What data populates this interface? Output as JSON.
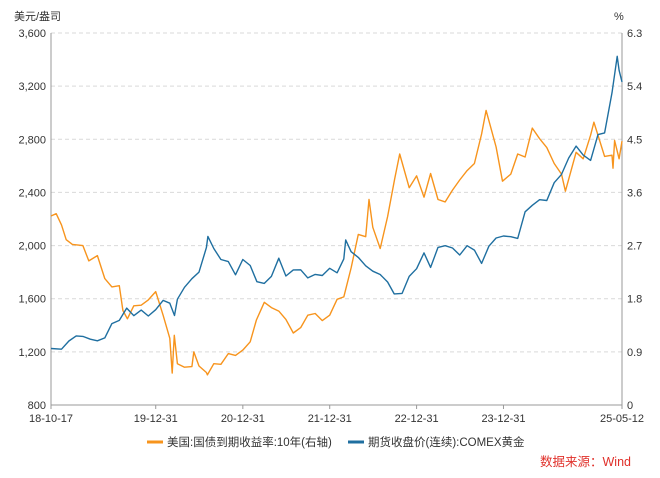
{
  "chart_data": {
    "type": "line",
    "left_axis_unit": "美元/盎司",
    "right_axis_unit": "%",
    "left_ticks": [
      "3,600",
      "3,200",
      "2,800",
      "2,400",
      "2,000",
      "1,600",
      "1,200",
      "800"
    ],
    "right_ticks": [
      "6.3",
      "5.4",
      "4.5",
      "3.6",
      "2.7",
      "1.8",
      "0.9",
      "0"
    ],
    "x_ticks": [
      "18-10-17",
      "19-12-31",
      "20-12-31",
      "21-12-31",
      "22-12-31",
      "23-12-31",
      "25-05-12"
    ],
    "ylim_left": [
      800,
      3600
    ],
    "ylim_right": [
      0,
      6.3
    ],
    "grid": "horizontal dashed",
    "legend_position": "bottom",
    "source": "数据来源：Wind",
    "colors": {
      "yield": "#f7941d",
      "gold": "#1f6fa0",
      "source": "#e0302a",
      "grid": "#d9d9d9"
    },
    "series": [
      {
        "name": "美国:国债到期收益率:10年(右轴)",
        "axis": "right",
        "points": [
          [
            "2018-10-17",
            3.2
          ],
          [
            "2018-11-08",
            3.24
          ],
          [
            "2018-11-30",
            3.05
          ],
          [
            "2018-12-20",
            2.8
          ],
          [
            "2019-01-15",
            2.72
          ],
          [
            "2019-02-28",
            2.7
          ],
          [
            "2019-03-25",
            2.44
          ],
          [
            "2019-04-30",
            2.53
          ],
          [
            "2019-05-31",
            2.14
          ],
          [
            "2019-06-30",
            2.0
          ],
          [
            "2019-07-31",
            2.02
          ],
          [
            "2019-08-15",
            1.6
          ],
          [
            "2019-09-03",
            1.46
          ],
          [
            "2019-09-30",
            1.68
          ],
          [
            "2019-10-31",
            1.69
          ],
          [
            "2019-11-30",
            1.78
          ],
          [
            "2019-12-31",
            1.92
          ],
          [
            "2020-01-31",
            1.52
          ],
          [
            "2020-02-28",
            1.13
          ],
          [
            "2020-03-09",
            0.54
          ],
          [
            "2020-03-18",
            1.18
          ],
          [
            "2020-03-31",
            0.7
          ],
          [
            "2020-04-30",
            0.64
          ],
          [
            "2020-05-31",
            0.65
          ],
          [
            "2020-06-08",
            0.9
          ],
          [
            "2020-06-30",
            0.66
          ],
          [
            "2020-07-31",
            0.55
          ],
          [
            "2020-08-04",
            0.51
          ],
          [
            "2020-08-31",
            0.7
          ],
          [
            "2020-09-30",
            0.69
          ],
          [
            "2020-10-31",
            0.87
          ],
          [
            "2020-11-30",
            0.84
          ],
          [
            "2020-12-31",
            0.93
          ],
          [
            "2021-01-31",
            1.07
          ],
          [
            "2021-02-26",
            1.44
          ],
          [
            "2021-03-31",
            1.74
          ],
          [
            "2021-04-30",
            1.65
          ],
          [
            "2021-05-31",
            1.59
          ],
          [
            "2021-06-30",
            1.45
          ],
          [
            "2021-07-31",
            1.22
          ],
          [
            "2021-08-31",
            1.31
          ],
          [
            "2021-09-30",
            1.52
          ],
          [
            "2021-10-31",
            1.55
          ],
          [
            "2021-11-30",
            1.43
          ],
          [
            "2021-12-31",
            1.52
          ],
          [
            "2022-01-31",
            1.79
          ],
          [
            "2022-02-28",
            1.83
          ],
          [
            "2022-03-31",
            2.32
          ],
          [
            "2022-04-30",
            2.89
          ],
          [
            "2022-05-31",
            2.85
          ],
          [
            "2022-06-14",
            3.48
          ],
          [
            "2022-06-30",
            3.01
          ],
          [
            "2022-07-31",
            2.65
          ],
          [
            "2022-08-31",
            3.19
          ],
          [
            "2022-09-30",
            3.83
          ],
          [
            "2022-10-21",
            4.25
          ],
          [
            "2022-11-30",
            3.68
          ],
          [
            "2022-12-31",
            3.88
          ],
          [
            "2023-01-31",
            3.52
          ],
          [
            "2023-02-28",
            3.92
          ],
          [
            "2023-03-31",
            3.48
          ],
          [
            "2023-04-30",
            3.44
          ],
          [
            "2023-05-31",
            3.64
          ],
          [
            "2023-06-30",
            3.81
          ],
          [
            "2023-07-31",
            3.97
          ],
          [
            "2023-08-31",
            4.09
          ],
          [
            "2023-09-30",
            4.59
          ],
          [
            "2023-10-19",
            4.99
          ],
          [
            "2023-11-30",
            4.37
          ],
          [
            "2023-12-27",
            3.79
          ],
          [
            "2024-01-31",
            3.91
          ],
          [
            "2024-02-29",
            4.25
          ],
          [
            "2024-03-31",
            4.2
          ],
          [
            "2024-04-30",
            4.69
          ],
          [
            "2024-05-31",
            4.51
          ],
          [
            "2024-06-30",
            4.36
          ],
          [
            "2024-07-31",
            4.09
          ],
          [
            "2024-08-31",
            3.91
          ],
          [
            "2024-09-16",
            3.62
          ],
          [
            "2024-10-31",
            4.28
          ],
          [
            "2024-11-30",
            4.17
          ],
          [
            "2024-12-31",
            4.57
          ],
          [
            "2025-01-14",
            4.79
          ],
          [
            "2025-02-28",
            4.21
          ],
          [
            "2025-03-31",
            4.23
          ],
          [
            "2025-04-04",
            4.01
          ],
          [
            "2025-04-11",
            4.48
          ],
          [
            "2025-04-30",
            4.17
          ],
          [
            "2025-05-12",
            4.47
          ]
        ]
      },
      {
        "name": "期货收盘价(连续):COMEX黄金",
        "axis": "left",
        "points": [
          [
            "2018-10-17",
            1225
          ],
          [
            "2018-11-30",
            1220
          ],
          [
            "2018-12-31",
            1282
          ],
          [
            "2019-01-31",
            1320
          ],
          [
            "2019-02-28",
            1316
          ],
          [
            "2019-03-31",
            1295
          ],
          [
            "2019-04-30",
            1283
          ],
          [
            "2019-05-31",
            1305
          ],
          [
            "2019-06-30",
            1413
          ],
          [
            "2019-07-31",
            1437
          ],
          [
            "2019-08-31",
            1529
          ],
          [
            "2019-09-30",
            1472
          ],
          [
            "2019-10-31",
            1514
          ],
          [
            "2019-11-30",
            1470
          ],
          [
            "2019-12-31",
            1517
          ],
          [
            "2020-01-31",
            1587
          ],
          [
            "2020-02-28",
            1566
          ],
          [
            "2020-03-19",
            1474
          ],
          [
            "2020-03-31",
            1596
          ],
          [
            "2020-04-30",
            1686
          ],
          [
            "2020-05-31",
            1751
          ],
          [
            "2020-06-30",
            1800
          ],
          [
            "2020-07-31",
            1985
          ],
          [
            "2020-08-06",
            2069
          ],
          [
            "2020-08-31",
            1978
          ],
          [
            "2020-09-30",
            1895
          ],
          [
            "2020-10-31",
            1879
          ],
          [
            "2020-11-30",
            1780
          ],
          [
            "2020-12-31",
            1895
          ],
          [
            "2021-01-31",
            1850
          ],
          [
            "2021-02-28",
            1728
          ],
          [
            "2021-03-31",
            1715
          ],
          [
            "2021-04-30",
            1768
          ],
          [
            "2021-05-31",
            1905
          ],
          [
            "2021-06-30",
            1771
          ],
          [
            "2021-07-31",
            1817
          ],
          [
            "2021-08-31",
            1818
          ],
          [
            "2021-09-30",
            1757
          ],
          [
            "2021-10-31",
            1783
          ],
          [
            "2021-11-30",
            1775
          ],
          [
            "2021-12-31",
            1829
          ],
          [
            "2022-01-31",
            1795
          ],
          [
            "2022-02-28",
            1900
          ],
          [
            "2022-03-08",
            2043
          ],
          [
            "2022-03-31",
            1954
          ],
          [
            "2022-04-30",
            1911
          ],
          [
            "2022-05-31",
            1848
          ],
          [
            "2022-06-30",
            1807
          ],
          [
            "2022-07-31",
            1782
          ],
          [
            "2022-08-31",
            1726
          ],
          [
            "2022-09-28",
            1636
          ],
          [
            "2022-10-31",
            1640
          ],
          [
            "2022-11-30",
            1768
          ],
          [
            "2022-12-31",
            1826
          ],
          [
            "2023-01-31",
            1945
          ],
          [
            "2023-02-28",
            1836
          ],
          [
            "2023-03-31",
            1986
          ],
          [
            "2023-04-30",
            1999
          ],
          [
            "2023-05-31",
            1982
          ],
          [
            "2023-06-30",
            1929
          ],
          [
            "2023-07-31",
            1999
          ],
          [
            "2023-08-31",
            1966
          ],
          [
            "2023-09-30",
            1866
          ],
          [
            "2023-10-31",
            1995
          ],
          [
            "2023-11-30",
            2057
          ],
          [
            "2023-12-31",
            2072
          ],
          [
            "2024-01-31",
            2067
          ],
          [
            "2024-02-29",
            2054
          ],
          [
            "2024-03-31",
            2254
          ],
          [
            "2024-04-30",
            2303
          ],
          [
            "2024-05-31",
            2345
          ],
          [
            "2024-06-30",
            2339
          ],
          [
            "2024-07-31",
            2473
          ],
          [
            "2024-08-31",
            2536
          ],
          [
            "2024-09-30",
            2659
          ],
          [
            "2024-10-31",
            2749
          ],
          [
            "2024-11-30",
            2681
          ],
          [
            "2024-12-31",
            2641
          ],
          [
            "2025-01-31",
            2835
          ],
          [
            "2025-02-28",
            2848
          ],
          [
            "2025-03-31",
            3150
          ],
          [
            "2025-04-22",
            3425
          ],
          [
            "2025-04-30",
            3319
          ],
          [
            "2025-05-12",
            3231
          ]
        ]
      }
    ]
  }
}
